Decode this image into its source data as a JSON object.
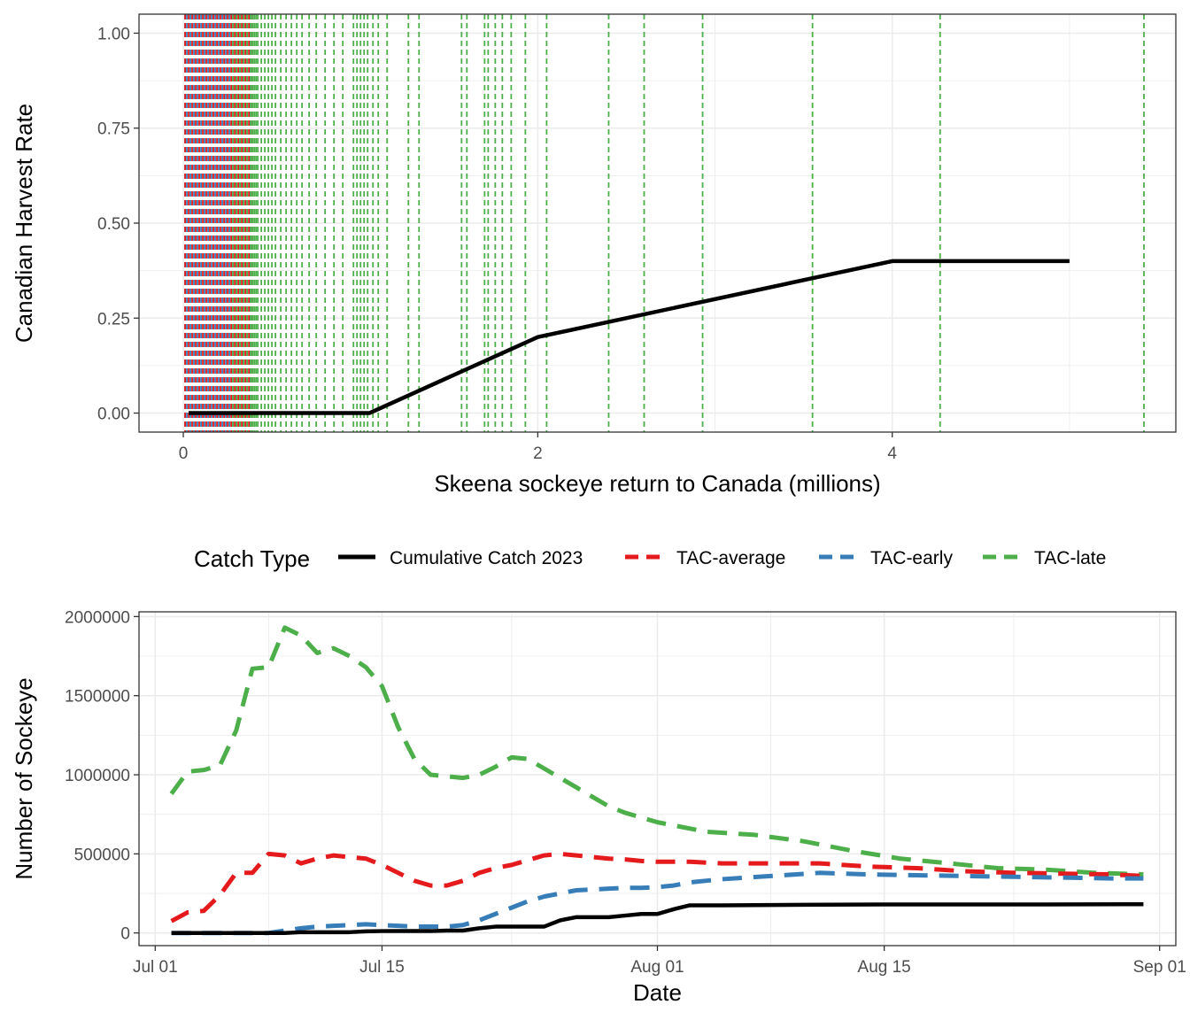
{
  "colors": {
    "cumulative": "#000000",
    "average": "#E41A1C",
    "early": "#377EB8",
    "late": "#4DAF4A",
    "grid": "#ebebeb",
    "panel_border": "#333333"
  },
  "chart_data": [
    {
      "type": "line",
      "xlabel": "Skeena sockeye return to Canada (millions)",
      "ylabel": "Canadian Harvest Rate",
      "xlim": [
        -0.25,
        5.6
      ],
      "ylim": [
        -0.05,
        1.05
      ],
      "x_ticks": [
        0,
        2,
        4
      ],
      "x_tick_labels": [
        "0",
        "2",
        "4"
      ],
      "y_ticks": [
        0,
        0.25,
        0.5,
        0.75,
        1.0
      ],
      "y_tick_labels": [
        "0.00",
        "0.25",
        "0.50",
        "0.75",
        "1.00"
      ],
      "grid": true,
      "harvest_rule": {
        "x": [
          0.03,
          1.05,
          2.0,
          4.0,
          5.0
        ],
        "y": [
          0.0,
          0.0,
          0.2,
          0.4,
          0.4
        ]
      },
      "vlines": {
        "average": [
          0.01,
          0.03,
          0.05,
          0.07,
          0.09,
          0.11,
          0.13,
          0.15,
          0.17,
          0.19,
          0.21,
          0.23,
          0.25,
          0.27,
          0.29,
          0.31,
          0.33,
          0.35,
          0.37,
          0.39
        ],
        "early": [
          0.01,
          0.02,
          0.04,
          0.06,
          0.08,
          0.1,
          0.12,
          0.14,
          0.16,
          0.18,
          0.2,
          0.22,
          0.24,
          0.26,
          0.28,
          0.3,
          0.32,
          0.34,
          0.36,
          0.38
        ],
        "late": [
          0.28,
          0.3,
          0.32,
          0.34,
          0.36,
          0.38,
          0.39,
          0.4,
          0.41,
          0.42,
          0.44,
          0.46,
          0.48,
          0.5,
          0.52,
          0.55,
          0.58,
          0.61,
          0.64,
          0.67,
          0.71,
          0.75,
          0.8,
          0.85,
          0.9,
          0.96,
          0.98,
          1.0,
          1.02,
          1.04,
          1.07,
          1.1,
          1.15,
          1.27,
          1.33,
          1.57,
          1.6,
          1.7,
          1.72,
          1.76,
          1.8,
          1.85,
          1.93,
          2.05,
          2.4,
          2.6,
          2.93,
          3.55,
          4.27,
          5.42
        ]
      }
    },
    {
      "type": "line",
      "xlabel": "Date",
      "ylabel": "Number of Sockeye",
      "xlim": [
        "2023-06-30",
        "2023-09-02"
      ],
      "ylim": [
        -80000,
        2030000
      ],
      "x_ticks": [
        "2023-07-01",
        "2023-07-15",
        "2023-08-01",
        "2023-08-15",
        "2023-09-01"
      ],
      "x_tick_labels": [
        "Jul 01",
        "Jul 15",
        "Aug 01",
        "Aug 15",
        "Sep 01"
      ],
      "y_ticks": [
        0,
        500000,
        1000000,
        1500000,
        2000000
      ],
      "y_tick_labels": [
        "0",
        "500000",
        "1000000",
        "1500000",
        "2000000"
      ],
      "grid": true,
      "legend": {
        "title": "Catch Type",
        "position": "top",
        "entries": [
          {
            "label": "Cumulative Catch 2023",
            "key": "cumulative"
          },
          {
            "label": "TAC-average",
            "key": "average"
          },
          {
            "label": "TAC-early",
            "key": "early"
          },
          {
            "label": "TAC-late",
            "key": "late"
          }
        ]
      },
      "series": [
        {
          "name": "Cumulative Catch 2023",
          "key": "cumulative",
          "x": [
            "2023-07-02",
            "2023-07-03",
            "2023-07-04",
            "2023-07-05",
            "2023-07-06",
            "2023-07-07",
            "2023-07-08",
            "2023-07-09",
            "2023-07-10",
            "2023-07-11",
            "2023-07-12",
            "2023-07-13",
            "2023-07-14",
            "2023-07-15",
            "2023-07-16",
            "2023-07-17",
            "2023-07-18",
            "2023-07-19",
            "2023-07-20",
            "2023-07-21",
            "2023-07-22",
            "2023-07-23",
            "2023-07-24",
            "2023-07-25",
            "2023-07-26",
            "2023-07-27",
            "2023-07-28",
            "2023-07-29",
            "2023-07-30",
            "2023-07-31",
            "2023-08-01",
            "2023-08-02",
            "2023-08-03",
            "2023-08-05",
            "2023-08-10",
            "2023-08-15",
            "2023-08-20",
            "2023-08-25",
            "2023-08-31"
          ],
          "y": [
            0,
            0,
            0,
            0,
            0,
            0,
            0,
            0,
            5000,
            5000,
            5000,
            5000,
            10000,
            12000,
            12000,
            12000,
            12000,
            15000,
            15000,
            30000,
            40000,
            40000,
            40000,
            40000,
            80000,
            100000,
            100000,
            100000,
            110000,
            120000,
            120000,
            150000,
            175000,
            175000,
            178000,
            180000,
            180000,
            180000,
            182000
          ]
        },
        {
          "name": "TAC-average",
          "key": "average",
          "x": [
            "2023-07-02",
            "2023-07-03",
            "2023-07-04",
            "2023-07-05",
            "2023-07-06",
            "2023-07-07",
            "2023-07-08",
            "2023-07-09",
            "2023-07-10",
            "2023-07-11",
            "2023-07-12",
            "2023-07-13",
            "2023-07-14",
            "2023-07-15",
            "2023-07-16",
            "2023-07-17",
            "2023-07-18",
            "2023-07-19",
            "2023-07-20",
            "2023-07-21",
            "2023-07-22",
            "2023-07-23",
            "2023-07-24",
            "2023-07-25",
            "2023-07-26",
            "2023-07-27",
            "2023-07-28",
            "2023-07-29",
            "2023-07-30",
            "2023-07-31",
            "2023-08-01",
            "2023-08-02",
            "2023-08-03",
            "2023-08-05",
            "2023-08-08",
            "2023-08-11",
            "2023-08-14",
            "2023-08-17",
            "2023-08-20",
            "2023-08-23",
            "2023-08-26",
            "2023-08-29",
            "2023-08-31"
          ],
          "y": [
            75000,
            130000,
            140000,
            240000,
            380000,
            380000,
            500000,
            490000,
            440000,
            470000,
            490000,
            480000,
            470000,
            430000,
            380000,
            330000,
            300000,
            300000,
            330000,
            380000,
            410000,
            430000,
            460000,
            490000,
            500000,
            490000,
            480000,
            470000,
            465000,
            455000,
            450000,
            450000,
            450000,
            440000,
            440000,
            440000,
            420000,
            410000,
            390000,
            380000,
            375000,
            370000,
            360000
          ]
        },
        {
          "name": "TAC-early",
          "key": "early",
          "x": [
            "2023-07-02",
            "2023-07-03",
            "2023-07-04",
            "2023-07-05",
            "2023-07-06",
            "2023-07-07",
            "2023-07-08",
            "2023-07-09",
            "2023-07-10",
            "2023-07-11",
            "2023-07-12",
            "2023-07-13",
            "2023-07-14",
            "2023-07-15",
            "2023-07-16",
            "2023-07-17",
            "2023-07-18",
            "2023-07-19",
            "2023-07-20",
            "2023-07-21",
            "2023-07-22",
            "2023-07-23",
            "2023-07-24",
            "2023-07-25",
            "2023-07-26",
            "2023-07-27",
            "2023-07-28",
            "2023-07-29",
            "2023-07-30",
            "2023-07-31",
            "2023-08-01",
            "2023-08-02",
            "2023-08-03",
            "2023-08-05",
            "2023-08-08",
            "2023-08-11",
            "2023-08-14",
            "2023-08-17",
            "2023-08-20",
            "2023-08-23",
            "2023-08-26",
            "2023-08-29",
            "2023-08-31"
          ],
          "y": [
            0,
            0,
            0,
            0,
            0,
            0,
            0,
            15000,
            30000,
            40000,
            45000,
            50000,
            55000,
            50000,
            45000,
            40000,
            40000,
            40000,
            50000,
            80000,
            120000,
            160000,
            200000,
            230000,
            250000,
            270000,
            275000,
            280000,
            285000,
            285000,
            290000,
            300000,
            320000,
            340000,
            360000,
            380000,
            370000,
            365000,
            360000,
            355000,
            350000,
            345000,
            345000
          ]
        },
        {
          "name": "TAC-late",
          "key": "late",
          "x": [
            "2023-07-02",
            "2023-07-03",
            "2023-07-04",
            "2023-07-05",
            "2023-07-06",
            "2023-07-07",
            "2023-07-08",
            "2023-07-09",
            "2023-07-10",
            "2023-07-11",
            "2023-07-12",
            "2023-07-13",
            "2023-07-14",
            "2023-07-15",
            "2023-07-16",
            "2023-07-17",
            "2023-07-18",
            "2023-07-19",
            "2023-07-20",
            "2023-07-21",
            "2023-07-22",
            "2023-07-23",
            "2023-07-24",
            "2023-07-25",
            "2023-07-26",
            "2023-07-27",
            "2023-07-28",
            "2023-07-29",
            "2023-07-30",
            "2023-07-31",
            "2023-08-01",
            "2023-08-02",
            "2023-08-04",
            "2023-08-07",
            "2023-08-10",
            "2023-08-13",
            "2023-08-16",
            "2023-08-19",
            "2023-08-22",
            "2023-08-25",
            "2023-08-28",
            "2023-08-31"
          ],
          "y": [
            880000,
            1020000,
            1030000,
            1060000,
            1280000,
            1670000,
            1680000,
            1930000,
            1880000,
            1770000,
            1800000,
            1750000,
            1680000,
            1560000,
            1300000,
            1100000,
            1000000,
            990000,
            980000,
            1000000,
            1050000,
            1110000,
            1100000,
            1040000,
            980000,
            920000,
            860000,
            800000,
            760000,
            730000,
            700000,
            680000,
            640000,
            620000,
            580000,
            520000,
            470000,
            440000,
            410000,
            400000,
            380000,
            370000
          ]
        }
      ]
    }
  ]
}
